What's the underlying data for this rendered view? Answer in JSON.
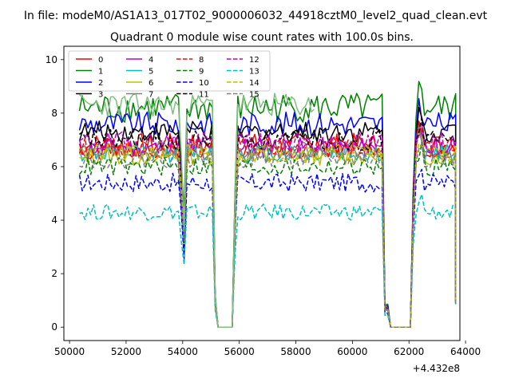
{
  "chart_data": {
    "type": "line",
    "suptitle": "In file: modeM0/AS1A13_017T02_9000006032_44918cztM0_level2_quad_clean.evt",
    "title": "Quadrant 0 module wise count rates with 100.0s bins.",
    "xlabel": "",
    "ylabel": "",
    "x_offset_label": "+4.432e8",
    "xlim": [
      49800,
      63800
    ],
    "ylim": [
      -0.5,
      10.5
    ],
    "xticks": [
      50000,
      52000,
      54000,
      56000,
      58000,
      60000,
      62000,
      64000
    ],
    "yticks": [
      0,
      2,
      4,
      6,
      8,
      10
    ],
    "x_start": 50350,
    "x_step": 100,
    "legend_position": "upper-left",
    "gaps": [
      {
        "drop_start": 53900,
        "low_start": 54100,
        "recover_low": 54000,
        "down_start": 55100,
        "zero_start": 55250,
        "zero_end": 55750,
        "up_end": 55950
      },
      {
        "down_start": 61150,
        "zero_start": 61350,
        "zero_end": 62050,
        "up_end": 62250
      }
    ],
    "x_end": 63650,
    "series": [
      {
        "name": "0",
        "color": "#ff0000",
        "dash": "solid",
        "level": 6.8,
        "noise": 0.45,
        "end_value": 0.9
      },
      {
        "name": "1",
        "color": "#008000",
        "dash": "solid",
        "level": 8.2,
        "noise": 0.55,
        "end_value": 1.0
      },
      {
        "name": "2",
        "color": "#0000ff",
        "dash": "solid",
        "level": 7.6,
        "noise": 0.45,
        "end_value": 1.0
      },
      {
        "name": "3",
        "color": "#000000",
        "dash": "solid",
        "level": 7.3,
        "noise": 0.4,
        "end_value": 1.0
      },
      {
        "name": "4",
        "color": "#bf00bf",
        "dash": "solid",
        "level": 6.7,
        "noise": 0.4,
        "end_value": 0.9
      },
      {
        "name": "5",
        "color": "#00bfbf",
        "dash": "solid",
        "level": 6.5,
        "noise": 0.35,
        "end_value": 0.9
      },
      {
        "name": "6",
        "color": "#bfbf00",
        "dash": "solid",
        "level": 6.4,
        "noise": 0.35,
        "end_value": 0.9
      },
      {
        "name": "7",
        "color": "#808080",
        "dash": "solid",
        "level": 6.6,
        "noise": 0.35,
        "end_value": 0.9
      },
      {
        "name": "8",
        "color": "#ff0000",
        "dash": "dashed",
        "level": 6.7,
        "noise": 0.4,
        "end_value": 0.9
      },
      {
        "name": "9",
        "color": "#008000",
        "dash": "dashed",
        "level": 6.0,
        "noise": 0.35,
        "end_value": 0.85
      },
      {
        "name": "10",
        "color": "#0000ff",
        "dash": "dashed",
        "level": 5.4,
        "noise": 0.35,
        "end_value": 0.85
      },
      {
        "name": "11",
        "color": "#000000",
        "dash": "dashed",
        "level": 7.0,
        "noise": 0.4,
        "end_value": 0.95
      },
      {
        "name": "12",
        "color": "#bf00bf",
        "dash": "dashed",
        "level": 6.9,
        "noise": 0.4,
        "end_value": 0.95
      },
      {
        "name": "13",
        "color": "#00bfbf",
        "dash": "dashed",
        "level": 4.3,
        "noise": 0.3,
        "end_value": 0.8
      },
      {
        "name": "14",
        "color": "#bfbf00",
        "dash": "dashed",
        "level": 6.5,
        "noise": 0.35,
        "end_value": 0.9
      },
      {
        "name": "15",
        "color": "#808080",
        "dash": "dashed",
        "level": 6.3,
        "noise": 0.35,
        "end_value": 0.9
      },
      {
        "name": "",
        "color": "#7fbf7f",
        "dash": "solid",
        "level": 8.3,
        "noise": 0.45,
        "end_value": 8.3,
        "partial_end": 58700
      }
    ]
  }
}
